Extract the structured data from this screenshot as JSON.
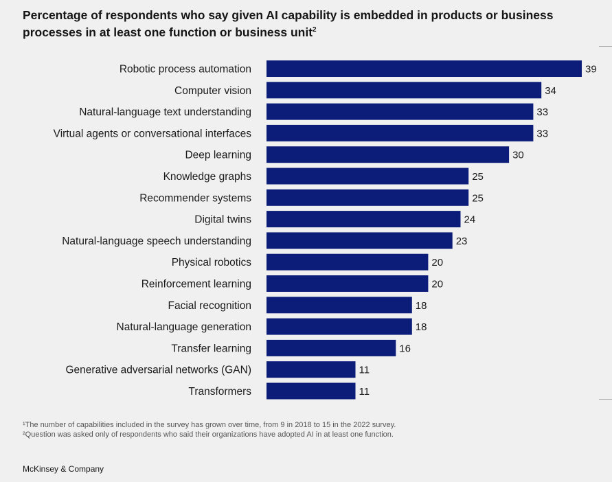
{
  "title_main": "Percentage of respondents who say given AI capability is embedded in products or business processes in at least one function or business unit",
  "title_footnote_mark": "2",
  "footnotes": [
    "¹The number of capabilities included in the survey has grown over time, from 9 in 2018 to 15 in the 2022 survey.",
    "²Question was asked only of respondents who said their organizations have adopted AI in at least one function."
  ],
  "brand": "McKinsey & Company",
  "colors": {
    "bar": "#0b1d78",
    "background": "#f0f0f0"
  },
  "chart_data": {
    "type": "bar",
    "orientation": "horizontal",
    "title": "Percentage of respondents who say given AI capability is embedded in products or business processes in at least one function or business unit",
    "categories": [
      "Robotic process automation",
      "Computer vision",
      "Natural-language text understanding",
      "Virtual agents or conversational interfaces",
      "Deep learning",
      "Knowledge graphs",
      "Recommender systems",
      "Digital twins",
      "Natural-language speech understanding",
      "Physical robotics",
      "Reinforcement learning",
      "Facial recognition",
      "Natural-language generation",
      "Transfer learning",
      "Generative adversarial networks (GAN)",
      "Transformers"
    ],
    "values": [
      39,
      34,
      33,
      33,
      30,
      25,
      25,
      24,
      23,
      20,
      20,
      18,
      18,
      16,
      11,
      11
    ],
    "xlim": [
      0,
      39
    ],
    "grid": false,
    "legend": "none",
    "data_labels": true
  }
}
